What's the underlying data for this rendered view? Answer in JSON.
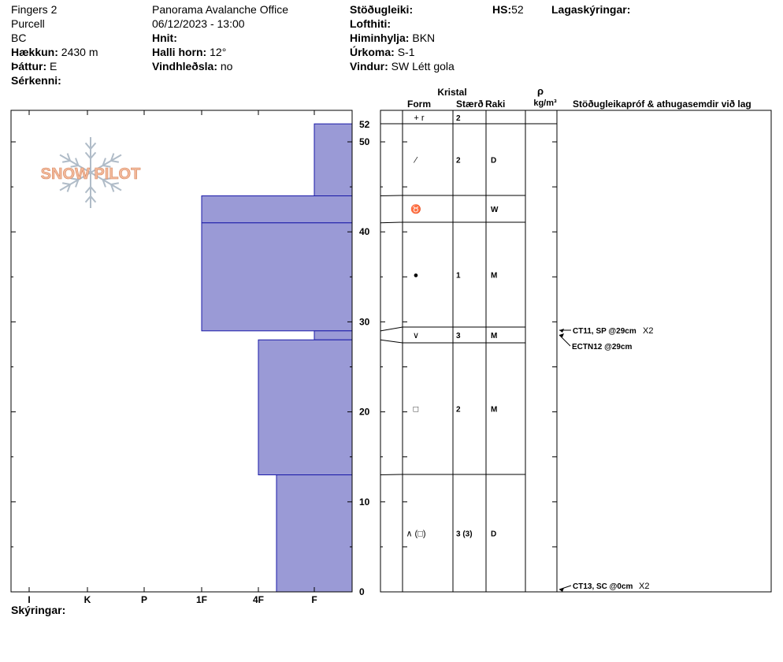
{
  "header": {
    "col1": {
      "location": "Fingers 2",
      "range": "Purcell",
      "state": "BC",
      "elevation_label": "Hækkun:",
      "elevation_value": "2430 m",
      "aspect_label": "Þáttur:",
      "aspect_value": "E",
      "specifics_label": "Sérkenni:"
    },
    "col2": {
      "observer": "Panorama Avalanche Office",
      "datetime": "06/12/2023 - 13:00",
      "coords_label": "Hnit:",
      "slope_label": "Halli horn:",
      "slope_value": "12°",
      "wind_loading_label": "Vindhleðsla:",
      "wind_loading_value": "no"
    },
    "col3": {
      "stability_label": "Stöðugleiki:",
      "air_temp_label": "Lofthiti:",
      "sky_label": "Himinhylja:",
      "sky_value": "BKN",
      "precip_label": "Úrkoma:",
      "precip_value": "S-1",
      "wind_label": "Vindur:",
      "wind_value": "SW Létt gola"
    },
    "hs_label": "HS:",
    "hs_value": "52",
    "legend_label": "Lagaskýringar:"
  },
  "footer": {
    "legend_label": "Skýringar:"
  },
  "logo": {
    "text": "SNOW PILOT"
  },
  "colors": {
    "hardness_fill": "#9a9ad6",
    "hardness_stroke": "#1a1aa8",
    "grid": "#000000",
    "logo": "#f2b99a",
    "flake": "#b0bcc8"
  },
  "columns": {
    "crystal": "Kristal",
    "form": "Form",
    "size": "Stærð",
    "moisture": "Raki",
    "density_symbol": "ρ",
    "density_unit": "kg/m³",
    "comments": "Stöðugleikapróf & athugasemdir við lag"
  },
  "chart_data": {
    "type": "snow-profile",
    "y_axis": {
      "min": 0,
      "max": 52,
      "ticks": [
        0,
        10,
        20,
        30,
        40,
        50
      ],
      "top_label": "52"
    },
    "x_axis": {
      "categories": [
        "I",
        "K",
        "P",
        "1F",
        "4F",
        "F"
      ]
    },
    "layers": [
      {
        "top": 52,
        "bottom": 44,
        "hardness": "F",
        "form": "⁄",
        "size": "2",
        "moisture": "D"
      },
      {
        "top": 44,
        "bottom": 41,
        "hardness": "1F",
        "form": "♉",
        "size": "",
        "moisture": "W"
      },
      {
        "top": 41,
        "bottom": 29,
        "hardness": "1F",
        "form": "●",
        "size": "1",
        "moisture": "M"
      },
      {
        "top": 29,
        "bottom": 28,
        "hardness": "F",
        "form": "∨",
        "size": "3",
        "moisture": "M"
      },
      {
        "top": 28,
        "bottom": 13,
        "hardness": "4F",
        "form": "□",
        "size": "2",
        "moisture": "M"
      },
      {
        "top": 13,
        "bottom": 0,
        "hardness": "4F-",
        "form": "∧ (□)",
        "size": "3 (3)",
        "moisture": "D"
      }
    ],
    "surface_layer": {
      "form": "+ r",
      "size": "2"
    },
    "tests": [
      {
        "depth": 29,
        "label": "CT11, SP @29cm",
        "count": "X2"
      },
      {
        "depth": 29,
        "label": "ECTN12 @29cm",
        "count": ""
      },
      {
        "depth": 0,
        "label": "CT13, SC @0cm",
        "count": "X2"
      }
    ]
  }
}
